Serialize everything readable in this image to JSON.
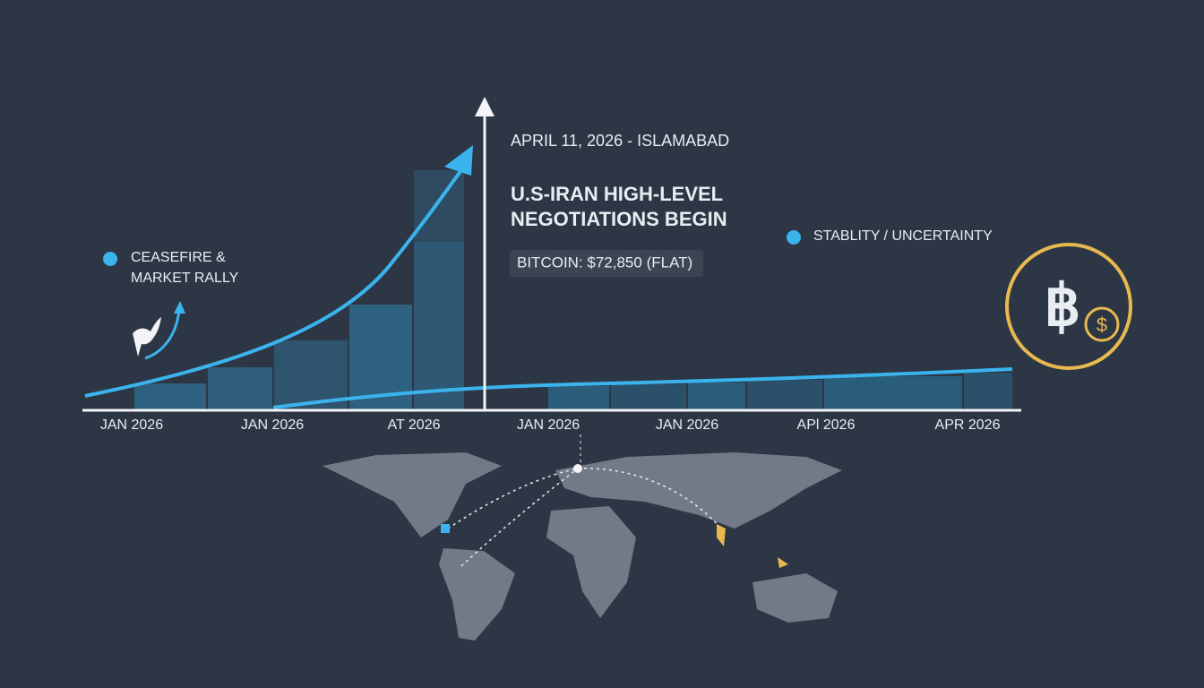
{
  "header": {
    "dateline": "APRIL 11, 2026 - ISLAMABAD",
    "headline": [
      "U.S-IRAN HIGH-LEVEL",
      "NEGOTIATIONS BEGIN"
    ],
    "price_note": "BITCOIN: $72,850 (FLAT)"
  },
  "legend": {
    "left": [
      "CEASEFIRE &",
      "MARKET RALLY"
    ],
    "right": "STABLITY / UNCERTAINTY"
  },
  "timeline": {
    "labels": [
      "JAN 2026",
      "JAN 2026",
      "AT 2026",
      "JAN 2026",
      "JAN 2026",
      "APl 2026",
      "APR 2026"
    ]
  }
}
